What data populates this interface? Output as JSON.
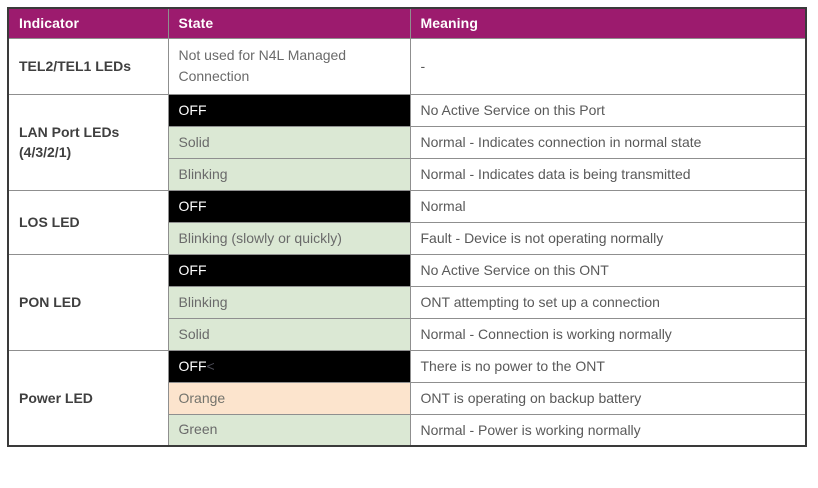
{
  "table": {
    "columns": [
      "Indicator",
      "State",
      "Meaning"
    ],
    "groups": [
      {
        "indicator": "TEL2/TEL1 LEDs",
        "rows": [
          {
            "state": "Not used for N4L Managed Connection",
            "state_style": "plain",
            "meaning": "-"
          }
        ]
      },
      {
        "indicator": "LAN Port LEDs (4/3/2/1)",
        "rows": [
          {
            "state": "OFF",
            "state_style": "black",
            "meaning": "No Active Service on this Port"
          },
          {
            "state": "Solid",
            "state_style": "green",
            "meaning": "Normal - Indicates connection in normal state"
          },
          {
            "state": "Blinking",
            "state_style": "green",
            "meaning": "Normal - Indicates data is being transmitted"
          }
        ]
      },
      {
        "indicator": "LOS LED",
        "rows": [
          {
            "state": "OFF",
            "state_style": "black",
            "meaning": "Normal"
          },
          {
            "state": "Blinking (slowly or quickly)",
            "state_style": "green",
            "meaning": "Fault - Device is not operating normally"
          }
        ]
      },
      {
        "indicator": "PON LED",
        "rows": [
          {
            "state": "OFF",
            "state_style": "black",
            "meaning": "No Active Service on this ONT"
          },
          {
            "state": "Blinking",
            "state_style": "green",
            "meaning": "ONT attempting to set up a connection"
          },
          {
            "state": "Solid",
            "state_style": "green",
            "meaning": "Normal - Connection is working normally"
          }
        ]
      },
      {
        "indicator": "Power LED",
        "rows": [
          {
            "state": "OFF",
            "state_suffix": "<",
            "state_style": "black",
            "meaning": "There is no power to the ONT"
          },
          {
            "state": "Orange",
            "state_style": "orange",
            "meaning": "ONT is operating on backup battery"
          },
          {
            "state": "Green",
            "state_style": "green",
            "meaning": "Normal - Power is working normally"
          }
        ]
      }
    ]
  },
  "colors": {
    "header_bg": "#9c1b6e",
    "header_text": "#ffffff",
    "state_off_bg": "#000000",
    "state_normal_bg": "#dbe8d4",
    "state_battery_bg": "#fce4cd",
    "indicator_text": "#3f3f3f",
    "body_text": "#595959",
    "inner_border": "#8f8f8f",
    "outer_border": "#3a3a3a"
  }
}
